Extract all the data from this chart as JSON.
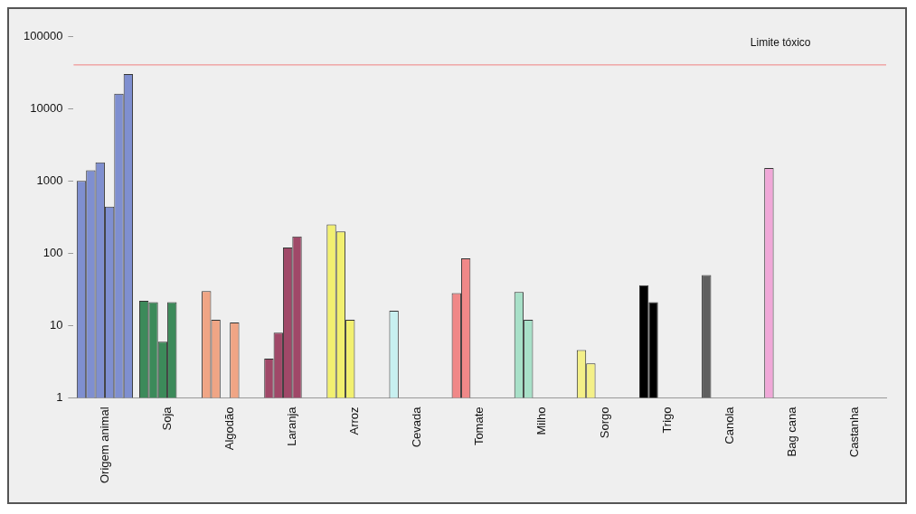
{
  "chart_data": {
    "type": "bar",
    "categories": [
      "Origem animal",
      "Soja",
      "Algodão",
      "Laranja",
      "Arroz",
      "Cevada",
      "Tomate",
      "Milho",
      "Sorgo",
      "Trigo",
      "Canola",
      "Bag cana",
      "Castanha"
    ],
    "series": [
      {
        "values": [
          1000,
          22,
          30,
          3.5,
          250,
          16,
          28,
          29,
          4.6,
          36,
          50,
          1500,
          null
        ],
        "colors": [
          "#7f8fd0",
          "#3c8a5a",
          "#f0a585",
          "#a04868",
          "#f2f070",
          "#c8f0f0",
          "#f08888",
          "#a8e0c8",
          "#f4f088",
          "#000000",
          "#606060",
          "#f0a8d8",
          "#cccccc"
        ]
      },
      {
        "values": [
          1400,
          21,
          12,
          8,
          200,
          null,
          85,
          12,
          3,
          21,
          null,
          null,
          null
        ],
        "colors": [
          "#7f8fd0",
          "#3c8a5a",
          "#f0a585",
          "#a04868",
          "#f2f070",
          "#c8f0f0",
          "#f08888",
          "#a8e0c8",
          "#f4f088",
          "#000000",
          "#606060",
          "#f0a8d8",
          "#cccccc"
        ]
      },
      {
        "values": [
          1800,
          6,
          null,
          120,
          12,
          null,
          null,
          null,
          null,
          null,
          null,
          null,
          null
        ],
        "colors": [
          "#7f8fd0",
          "#3c8a5a",
          "#f0a585",
          "#a04868",
          "#f2f070",
          "#c8f0f0",
          "#f08888",
          "#a8e0c8",
          "#f4f088",
          "#000000",
          "#606060",
          "#f0a8d8",
          "#cccccc"
        ]
      },
      {
        "values": [
          440,
          21,
          11,
          170,
          null,
          null,
          null,
          null,
          null,
          null,
          null,
          null,
          null
        ],
        "colors": [
          "#7f8fd0",
          "#3c8a5a",
          "#f0a585",
          "#a04868",
          "#f2f070",
          "#c8f0f0",
          "#f08888",
          "#a8e0c8",
          "#f4f088",
          "#000000",
          "#606060",
          "#f0a8d8",
          "#cccccc"
        ]
      },
      {
        "values": [
          16000,
          null,
          null,
          null,
          null,
          null,
          null,
          null,
          null,
          null,
          null,
          null,
          null
        ],
        "colors": [
          "#7f8fd0",
          "#3c8a5a",
          "#f0a585",
          "#a04868",
          "#f2f070",
          "#c8f0f0",
          "#f08888",
          "#a8e0c8",
          "#f4f088",
          "#000000",
          "#606060",
          "#f0a8d8",
          "#cccccc"
        ]
      },
      {
        "values": [
          30000,
          null,
          null,
          null,
          null,
          null,
          null,
          null,
          null,
          null,
          null,
          null,
          null
        ],
        "colors": [
          "#7f8fd0",
          "#3c8a5a",
          "#f0a585",
          "#a04868",
          "#f2f070",
          "#c8f0f0",
          "#f08888",
          "#a8e0c8",
          "#f4f088",
          "#000000",
          "#606060",
          "#f0a8d8",
          "#cccccc"
        ]
      }
    ],
    "log": "y",
    "ylim": [
      1,
      100000
    ],
    "yticks": [
      1,
      10,
      100,
      1000,
      10000,
      100000
    ],
    "ref_lines": [
      {
        "axis": "y",
        "value": 40000,
        "label": "Limite tóxico",
        "color": "#f08080"
      }
    ],
    "grid": false,
    "legend": false
  }
}
